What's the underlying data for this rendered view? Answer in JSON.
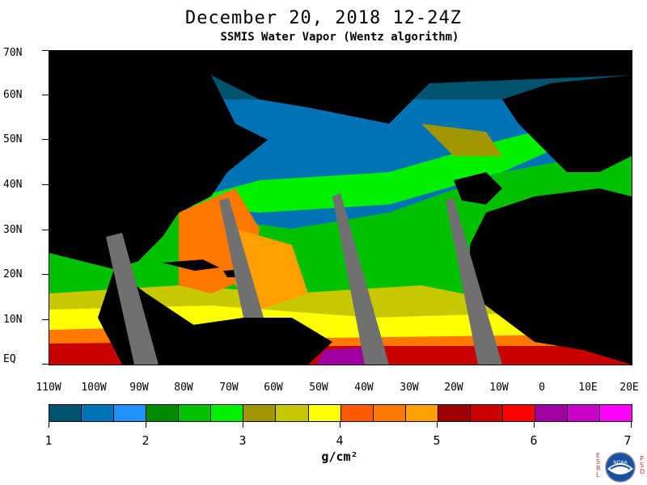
{
  "header": {
    "title": "December 20, 2018 12-24Z",
    "subtitle": "SSMIS Water Vapor (Wentz algorithm)"
  },
  "map": {
    "lat_labels": [
      "70N",
      "60N",
      "50N",
      "40N",
      "30N",
      "20N",
      "10N",
      "EQ"
    ],
    "lon_labels": [
      "110W",
      "100W",
      "90W",
      "80W",
      "70W",
      "60W",
      "50W",
      "40W",
      "30W",
      "20W",
      "10W",
      "0",
      "10E",
      "20E"
    ],
    "land_color": "#000000",
    "missing_swath_color": "#707070"
  },
  "colorbar": {
    "unit": "g/cm²",
    "tick_labels": [
      "1",
      "2",
      "3",
      "4",
      "5",
      "6",
      "7"
    ],
    "colors": [
      "#00536e",
      "#0073b4",
      "#1e90ff",
      "#008c00",
      "#00c000",
      "#00f000",
      "#a09600",
      "#c8c800",
      "#ffff00",
      "#ff5a00",
      "#ff7800",
      "#ffa000",
      "#a00000",
      "#c80000",
      "#ff0000",
      "#a000a0",
      "#c800c8",
      "#ff00ff"
    ]
  },
  "logo": {
    "left_letters": "ESRL",
    "right_letters": "PSD",
    "center_text": "NOAA"
  }
}
